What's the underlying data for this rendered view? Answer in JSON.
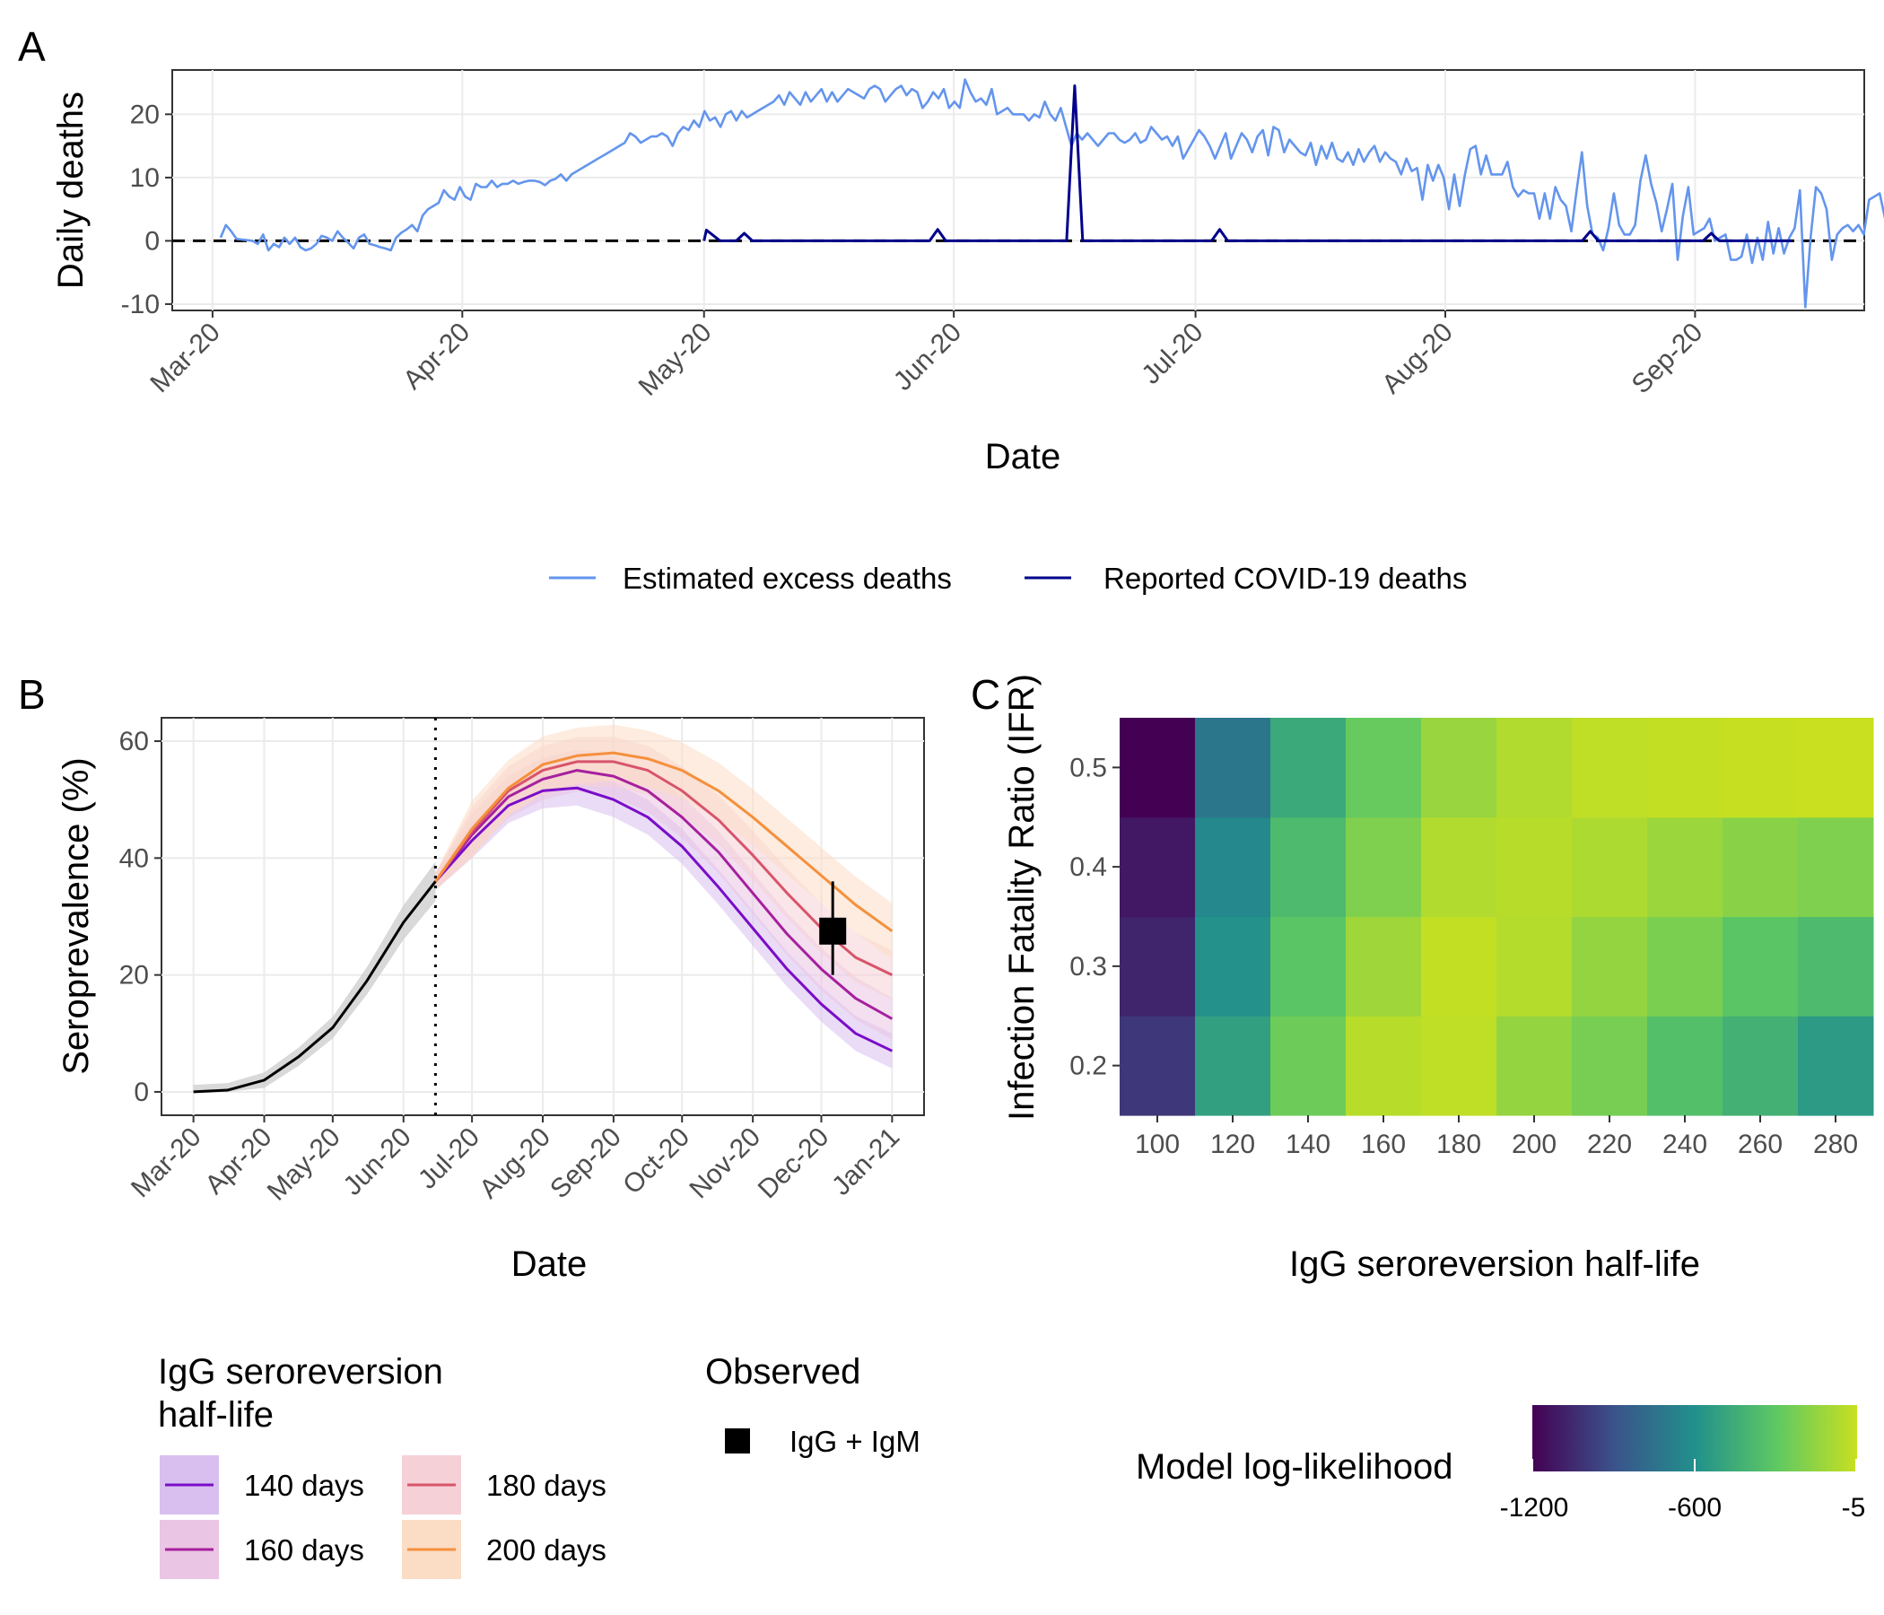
{
  "panels": {
    "a": "A",
    "b": "B",
    "c": "C"
  },
  "chart_data": [
    {
      "panel": "A",
      "type": "line",
      "xlabel": "Date",
      "ylabel": "Daily deaths",
      "ylim": [
        -11,
        27
      ],
      "y_ticks": [
        -10,
        0,
        10,
        20
      ],
      "x_ticks": [
        "Mar-20",
        "Apr-20",
        "May-20",
        "Jun-20",
        "Jul-20",
        "Aug-20",
        "Sep-20"
      ],
      "x_tick_days": [
        0,
        31,
        61,
        92,
        122,
        153,
        184
      ],
      "xlim_days": [
        -5,
        205
      ],
      "grid": true,
      "reference_line": {
        "y": 0,
        "style": "dashed"
      },
      "legend_position": "bottom",
      "series": [
        {
          "name": "Estimated excess deaths",
          "color": "#6495ED",
          "x_day_start": 1,
          "values": [
            0.5,
            2.5,
            1.5,
            0.3,
            0.2,
            0.1,
            0,
            -0.5,
            1,
            -1.5,
            -0.5,
            -1,
            0.5,
            -0.5,
            0.5,
            -1,
            -1.5,
            -1.2,
            -0.5,
            0.8,
            0.5,
            0,
            1.5,
            0.5,
            -0.3,
            -1.2,
            0.5,
            1,
            -0.5,
            -0.7,
            -1,
            -1.2,
            -1.5,
            0.5,
            1.3,
            1.8,
            2.5,
            1.5,
            4,
            5,
            5.5,
            6,
            8,
            7,
            6.5,
            8.5,
            7,
            6.5,
            9,
            8.5,
            8.5,
            9.5,
            8.5,
            9,
            9,
            9.5,
            9,
            9.3,
            9.5,
            9.5,
            9.3,
            8.8,
            9.5,
            9.8,
            10.5,
            9.5,
            10.5,
            11,
            11.5,
            12,
            12.5,
            13,
            13.5,
            14,
            14.5,
            15,
            15.5,
            17,
            16.5,
            15.5,
            16,
            16.5,
            16.5,
            17,
            16.5,
            15,
            17,
            18,
            17.5,
            19,
            18,
            20.5,
            19,
            19.5,
            18,
            20,
            20.5,
            19,
            20.5,
            19.5,
            20,
            20.5,
            21,
            21.5,
            22,
            23,
            21.5,
            23.5,
            22.5,
            21.5,
            23.5,
            22,
            23,
            24,
            22,
            23.5,
            22,
            23,
            24,
            23.5,
            23,
            22.5,
            24,
            24.5,
            24,
            22,
            23,
            24,
            24.5,
            23,
            24,
            23.5,
            21,
            22,
            23.5,
            22.5,
            24,
            21,
            22,
            21,
            25.5,
            23.5,
            22,
            22.5,
            21.5,
            24,
            20,
            20.5,
            21,
            20,
            20,
            20,
            19,
            20,
            19.5,
            22,
            20,
            19,
            21,
            18,
            15,
            17,
            16,
            17,
            16,
            15,
            16,
            17,
            17,
            16,
            15.5,
            16,
            17,
            15.5,
            16,
            18,
            17,
            16,
            16.5,
            15,
            16.5,
            13,
            14.5,
            16,
            17.5,
            16.5,
            15,
            13,
            15,
            17,
            13,
            15,
            17,
            16,
            14,
            16.5,
            17.5,
            13.5,
            18,
            17.5,
            14,
            16,
            15,
            14,
            13.5,
            15.5,
            12,
            15,
            13,
            15.5,
            13,
            12.5,
            14,
            12,
            14.5,
            12.5,
            14,
            15,
            12.5,
            14,
            13,
            12.5,
            10.5,
            13,
            11,
            11.5,
            6.5,
            12,
            9.5,
            12,
            10,
            5,
            10.5,
            5.5,
            10.5,
            14.5,
            15,
            10.5,
            13.5,
            10.5,
            10.5,
            10.5,
            12.5,
            8.5,
            7,
            8,
            7.5,
            7.5,
            3.5,
            7.5,
            3.5,
            8.5,
            6.5,
            5.5,
            1.5,
            8,
            14,
            5.5,
            1,
            0.5,
            -1.5,
            2,
            7.5,
            2.5,
            1,
            1,
            2.5,
            9.5,
            13.5,
            9,
            6,
            1.5,
            5,
            9,
            -3,
            4,
            8.5,
            1,
            1.5,
            2,
            3.5,
            0,
            0.5,
            1,
            -3,
            -3,
            -2.5,
            1,
            -3.5,
            0.5,
            -3,
            3,
            -2,
            2,
            -2,
            0.5,
            2,
            8,
            -10.5,
            0.5,
            8.5,
            7.5,
            5,
            -3,
            1,
            2,
            2.5,
            1.5,
            2.5,
            1,
            6.5,
            7,
            7.5,
            3.5,
            2,
            1.5,
            1,
            -1,
            0,
            0.5,
            0.3,
            0
          ]
        },
        {
          "name": "Reported COVID-19 deaths",
          "color": "#00008B",
          "points": [
            [
              61,
              0
            ],
            [
              61.3,
              1.7
            ],
            [
              63,
              0
            ],
            [
              65,
              0
            ],
            [
              66,
              1.2
            ],
            [
              67,
              0
            ],
            [
              89,
              0
            ],
            [
              90,
              1.8
            ],
            [
              91,
              0
            ],
            [
              106,
              0
            ],
            [
              107,
              24.5
            ],
            [
              108,
              0
            ],
            [
              109,
              0
            ],
            [
              124,
              0
            ],
            [
              125,
              1.8
            ],
            [
              126,
              0
            ],
            [
              170,
              0
            ],
            [
              171,
              1.5
            ],
            [
              172,
              0
            ],
            [
              185,
              0
            ],
            [
              186,
              1.2
            ],
            [
              187,
              0
            ],
            [
              196,
              0
            ]
          ]
        }
      ]
    },
    {
      "panel": "B",
      "type": "line",
      "xlabel": "Date",
      "ylabel": "Seroprevalence (%)",
      "ylim": [
        -4,
        64
      ],
      "y_ticks": [
        0,
        20,
        40,
        60
      ],
      "x_ticks": [
        "Mar-20",
        "Apr-20",
        "May-20",
        "Jun-20",
        "Jul-20",
        "Aug-20",
        "Sep-20",
        "Oct-20",
        "Nov-20",
        "Dec-20",
        "Jan-21"
      ],
      "x_tick_days": [
        0,
        31,
        61,
        92,
        122,
        153,
        184,
        214,
        245,
        275,
        306
      ],
      "xlim_days": [
        -14,
        320
      ],
      "grid": true,
      "vertical_reference_day": 106,
      "fitted_curve": {
        "color": "#000000",
        "x_days": [
          0,
          15,
          31,
          46,
          61,
          76,
          92,
          106
        ],
        "values": [
          0,
          0.3,
          2,
          6,
          11,
          19,
          29,
          36
        ]
      },
      "series": [
        {
          "name": "140 days",
          "color": "#7A0DC9",
          "band": "#D8BFEF",
          "x_days": [
            106,
            122,
            138,
            153,
            168,
            184,
            199,
            214,
            230,
            245,
            260,
            275,
            290,
            306
          ],
          "values": [
            36,
            43,
            49,
            51.5,
            52,
            50,
            47,
            42,
            35,
            28,
            21,
            15,
            10,
            7
          ]
        },
        {
          "name": "160 days",
          "color": "#A6209D",
          "band": "#EAC5E4",
          "x_days": [
            106,
            122,
            138,
            153,
            168,
            184,
            199,
            214,
            230,
            245,
            260,
            275,
            290,
            306
          ],
          "values": [
            36,
            44,
            50.5,
            53.5,
            55,
            54,
            51.5,
            47,
            41,
            34,
            27,
            21,
            16,
            12.5
          ]
        },
        {
          "name": "180 days",
          "color": "#D8546B",
          "band": "#F5D0D6",
          "x_days": [
            106,
            122,
            138,
            153,
            168,
            184,
            199,
            214,
            230,
            245,
            260,
            275,
            290,
            306
          ],
          "values": [
            36,
            44.5,
            51.5,
            55,
            56.5,
            56.5,
            55,
            51.5,
            46.5,
            40.5,
            34,
            28,
            23,
            20
          ]
        },
        {
          "name": "200 days",
          "color": "#F5903D",
          "band": "#FBDCC4",
          "x_days": [
            106,
            122,
            138,
            153,
            168,
            184,
            199,
            214,
            230,
            245,
            260,
            275,
            290,
            306
          ],
          "values": [
            36,
            45,
            52,
            56,
            57.5,
            58,
            57,
            55,
            51.5,
            47,
            42,
            37,
            32,
            27.5
          ]
        }
      ],
      "observed": {
        "name": "IgG + IgM",
        "x_day": 280,
        "value": 27.5,
        "lower": 20,
        "upper": 36
      }
    },
    {
      "panel": "C",
      "type": "heatmap",
      "xlabel": "IgG seroreversion half-life",
      "ylabel": "Infection Fatality Ratio (IFR)",
      "x_categories": [
        "100",
        "120",
        "140",
        "160",
        "180",
        "200",
        "220",
        "240",
        "260",
        "280"
      ],
      "y_categories": [
        "0.2",
        "0.3",
        "0.4",
        "0.5"
      ],
      "colorbar": {
        "title": "Model log-likelihood",
        "min": -1200,
        "max": -5,
        "ticks": [
          "-1200",
          "-600",
          "-5"
        ],
        "colors": [
          "#440154",
          "#3B528B",
          "#21908C",
          "#5DC863",
          "#C8E020"
        ]
      },
      "values": [
        [
          -1000,
          -520,
          -260,
          -50,
          -30,
          -150,
          -230,
          -350,
          -430,
          -550
        ],
        [
          -1070,
          -590,
          -320,
          -120,
          -20,
          -60,
          -150,
          -220,
          -320,
          -380
        ],
        [
          -1120,
          -640,
          -380,
          -210,
          -70,
          -50,
          -80,
          -130,
          -180,
          -210
        ],
        [
          -1200,
          -730,
          -470,
          -280,
          -140,
          -70,
          -30,
          -20,
          -10,
          -5
        ]
      ]
    }
  ],
  "legend_a": {
    "items": [
      {
        "label": "Estimated excess deaths",
        "color": "#6495ED"
      },
      {
        "label": "Reported COVID-19 deaths",
        "color": "#00008B"
      }
    ]
  },
  "legend_b": {
    "title_line1": "IgG seroreversion",
    "title_line2": "half-life",
    "items": [
      {
        "label": "140 days",
        "color": "#7A0DC9",
        "band": "#D8BFEF"
      },
      {
        "label": "160 days",
        "color": "#A6209D",
        "band": "#EAC5E4"
      },
      {
        "label": "180 days",
        "color": "#D8546B",
        "band": "#F5D0D6"
      },
      {
        "label": "200 days",
        "color": "#F5903D",
        "band": "#FBDCC4"
      }
    ],
    "observed_title": "Observed",
    "observed_label": "IgG + IgM"
  }
}
